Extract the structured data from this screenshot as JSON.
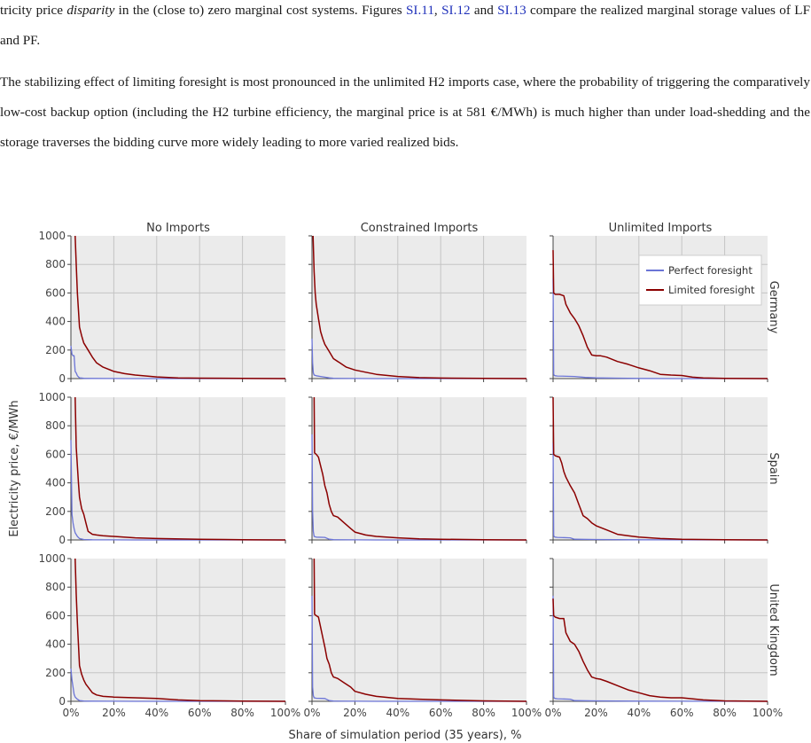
{
  "paragraph1": {
    "line1_start": "tricity price ",
    "line1_em": "disparity",
    "line1_mid": " in the (close to) zero marginal cost systems. Figures ",
    "ref1": "SI.11",
    "sep1": ", ",
    "ref2": "SI.12",
    "sep2": " and ",
    "ref3": "SI.13",
    "line1_end": " compare the realized",
    "line2": "marginal storage values of LF and PF."
  },
  "paragraph2": {
    "text": "The stabilizing effect of limiting foresight is most pronounced in the unlimited H2 imports case, where the probability of triggering the comparatively low-cost backup option (including the H2 turbine efficiency, the marginal price is at 581 €/MWh) is much higher than under load-shedding and the storage traverses the bidding curve more widely leading to more varied realized bids."
  },
  "figure": {
    "ylabel": "Electricity price, €/MWh",
    "xlabel": "Share of simulation period (35 years), %",
    "col_titles": [
      "No Imports",
      "Constrained Imports",
      "Unlimited Imports"
    ],
    "row_titles": [
      "Germany",
      "Spain",
      "United Kingdom"
    ],
    "y_ticks": [
      "1000",
      "800",
      "600",
      "400",
      "200",
      "0"
    ],
    "x_ticks": [
      "0%",
      "20%",
      "40%",
      "60%",
      "80%",
      "100%"
    ],
    "legend": [
      "Perfect foresight",
      "Limited foresight"
    ],
    "colors": {
      "perfect": "#6b74d6",
      "limited": "#8b0000",
      "panel_bg": "#ebebeb",
      "grid": "#c4c4c4"
    }
  },
  "chart_data": {
    "type": "line",
    "title": "",
    "xlabel": "Share of simulation period (35 years), %",
    "ylabel": "Electricity price, €/MWh",
    "xlim": [
      0,
      100
    ],
    "ylim": [
      0,
      1000
    ],
    "grid": true,
    "legend_position": "top-right",
    "panels": [
      {
        "row": "Germany",
        "col": "No Imports",
        "series": [
          {
            "name": "Limited foresight",
            "x": [
              2,
              2.5,
              3,
              3.5,
              4,
              5,
              6,
              8,
              10,
              12,
              15,
              20,
              25,
              30,
              40,
              50,
              60,
              80,
              100
            ],
            "y": [
              1000,
              800,
              600,
              480,
              360,
              300,
              250,
              200,
              150,
              110,
              80,
              50,
              35,
              25,
              12,
              5,
              3,
              1,
              0
            ]
          },
          {
            "name": "Perfect foresight",
            "x": [
              0,
              0.5,
              1,
              1.5,
              2,
              2.5,
              3,
              4,
              6,
              10,
              30,
              100
            ],
            "y": [
              230,
              170,
              160,
              160,
              50,
              40,
              20,
              5,
              2,
              1,
              0,
              0
            ]
          }
        ]
      },
      {
        "row": "Germany",
        "col": "Constrained Imports",
        "series": [
          {
            "name": "Limited foresight",
            "x": [
              0.5,
              1,
              1.5,
              2,
              3,
              4,
              5,
              6,
              8,
              10,
              13,
              16,
              20,
              25,
              30,
              40,
              50,
              60,
              80,
              100
            ],
            "y": [
              1000,
              750,
              600,
              520,
              420,
              330,
              280,
              240,
              190,
              140,
              110,
              80,
              60,
              45,
              30,
              15,
              7,
              4,
              1,
              0
            ]
          },
          {
            "name": "Perfect foresight",
            "x": [
              0,
              0.3,
              0.6,
              1,
              2,
              4,
              6,
              8,
              10,
              30,
              100
            ],
            "y": [
              280,
              110,
              40,
              25,
              20,
              15,
              10,
              5,
              2,
              0,
              0
            ]
          }
        ]
      },
      {
        "row": "Germany",
        "col": "Unlimited Imports",
        "series": [
          {
            "name": "Limited foresight",
            "x": [
              0,
              0.3,
              1,
              3,
              5,
              6,
              8,
              10,
              12,
              14,
              16,
              18,
              20,
              22,
              25,
              30,
              35,
              40,
              45,
              50,
              55,
              60,
              65,
              70,
              80,
              100
            ],
            "y": [
              900,
              600,
              590,
              590,
              580,
              520,
              460,
              420,
              370,
              300,
              220,
              165,
              160,
              160,
              150,
              120,
              100,
              75,
              55,
              30,
              25,
              22,
              10,
              5,
              2,
              0
            ]
          },
          {
            "name": "Perfect foresight",
            "x": [
              0,
              0.3,
              0.6,
              1,
              2,
              10,
              15,
              20,
              30,
              40,
              60,
              100
            ],
            "y": [
              700,
              30,
              22,
              20,
              18,
              15,
              8,
              5,
              3,
              1,
              0,
              0
            ]
          }
        ]
      },
      {
        "row": "Spain",
        "col": "No Imports",
        "series": [
          {
            "name": "Limited foresight",
            "x": [
              2,
              2.5,
              3,
              3.5,
              4,
              5,
              6,
              7,
              8,
              10,
              12,
              15,
              20,
              30,
              40,
              60,
              80,
              100
            ],
            "y": [
              1000,
              650,
              520,
              400,
              300,
              220,
              180,
              120,
              60,
              40,
              35,
              30,
              25,
              15,
              10,
              5,
              2,
              0
            ]
          },
          {
            "name": "Perfect foresight",
            "x": [
              0,
              0.5,
              1,
              1.5,
              2,
              3,
              4,
              6,
              10,
              30,
              100
            ],
            "y": [
              700,
              180,
              120,
              80,
              50,
              25,
              10,
              3,
              1,
              0,
              0
            ]
          }
        ]
      },
      {
        "row": "Spain",
        "col": "Constrained Imports",
        "series": [
          {
            "name": "Limited foresight",
            "x": [
              1,
              1.2,
              2,
              3,
              4,
              5,
              6,
              7,
              8,
              9,
              10,
              12,
              15,
              18,
              20,
              25,
              30,
              40,
              50,
              60,
              80,
              100
            ],
            "y": [
              1000,
              610,
              600,
              580,
              520,
              460,
              380,
              330,
              250,
              200,
              170,
              160,
              120,
              80,
              55,
              35,
              25,
              15,
              8,
              5,
              2,
              0
            ]
          },
          {
            "name": "Perfect foresight",
            "x": [
              0,
              0.3,
              0.6,
              1,
              2,
              6,
              8,
              10,
              30,
              100
            ],
            "y": [
              740,
              200,
              60,
              25,
              20,
              18,
              5,
              2,
              0,
              0
            ]
          }
        ]
      },
      {
        "row": "Spain",
        "col": "Unlimited Imports",
        "series": [
          {
            "name": "Limited foresight",
            "x": [
              0,
              0.3,
              1,
              3,
              4,
              5,
              6,
              8,
              10,
              12,
              14,
              16,
              18,
              20,
              25,
              30,
              35,
              40,
              50,
              60,
              80,
              100
            ],
            "y": [
              1000,
              600,
              590,
              580,
              540,
              480,
              440,
              380,
              330,
              250,
              170,
              150,
              120,
              100,
              70,
              40,
              30,
              20,
              10,
              5,
              2,
              0
            ]
          },
          {
            "name": "Perfect foresight",
            "x": [
              0,
              0.3,
              0.6,
              1,
              2,
              8,
              10,
              20,
              40,
              100
            ],
            "y": [
              680,
              30,
              22,
              20,
              18,
              15,
              5,
              3,
              1,
              0
            ]
          }
        ]
      },
      {
        "row": "United Kingdom",
        "col": "No Imports",
        "series": [
          {
            "name": "Limited foresight",
            "x": [
              2,
              2.5,
              3,
              3.5,
              4,
              5,
              6,
              7,
              8,
              10,
              12,
              15,
              20,
              30,
              40,
              50,
              60,
              80,
              100
            ],
            "y": [
              1000,
              750,
              550,
              400,
              250,
              190,
              150,
              120,
              100,
              60,
              45,
              35,
              30,
              25,
              20,
              10,
              5,
              2,
              0
            ]
          },
          {
            "name": "Perfect foresight",
            "x": [
              0,
              0.5,
              1,
              1.5,
              2,
              3,
              4,
              6,
              10,
              30,
              100
            ],
            "y": [
              230,
              150,
              100,
              50,
              30,
              15,
              5,
              2,
              1,
              0,
              0
            ]
          }
        ]
      },
      {
        "row": "United Kingdom",
        "col": "Constrained Imports",
        "series": [
          {
            "name": "Limited foresight",
            "x": [
              1,
              1.2,
              2,
              3,
              4,
              5,
              6,
              7,
              8,
              9,
              10,
              12,
              15,
              18,
              20,
              25,
              30,
              40,
              50,
              60,
              80,
              100
            ],
            "y": [
              1000,
              610,
              600,
              590,
              520,
              450,
              380,
              300,
              260,
              200,
              170,
              160,
              130,
              100,
              70,
              50,
              35,
              20,
              15,
              10,
              3,
              0
            ]
          },
          {
            "name": "Perfect foresight",
            "x": [
              0,
              0.3,
              0.6,
              1,
              2,
              6,
              8,
              10,
              30,
              100
            ],
            "y": [
              740,
              100,
              40,
              25,
              22,
              20,
              5,
              2,
              0,
              0
            ]
          }
        ]
      },
      {
        "row": "United Kingdom",
        "col": "Unlimited Imports",
        "series": [
          {
            "name": "Limited foresight",
            "x": [
              0,
              0.3,
              1,
              3,
              5,
              6,
              8,
              10,
              12,
              14,
              16,
              18,
              20,
              22,
              25,
              30,
              35,
              40,
              45,
              50,
              55,
              60,
              70,
              80,
              100
            ],
            "y": [
              720,
              600,
              590,
              580,
              580,
              480,
              420,
              400,
              350,
              280,
              220,
              170,
              160,
              155,
              140,
              110,
              80,
              60,
              40,
              30,
              25,
              25,
              10,
              3,
              0
            ]
          },
          {
            "name": "Perfect foresight",
            "x": [
              0,
              0.3,
              0.6,
              1,
              2,
              8,
              10,
              20,
              40,
              100
            ],
            "y": [
              740,
              30,
              22,
              20,
              18,
              15,
              5,
              3,
              1,
              0
            ]
          }
        ]
      }
    ]
  }
}
